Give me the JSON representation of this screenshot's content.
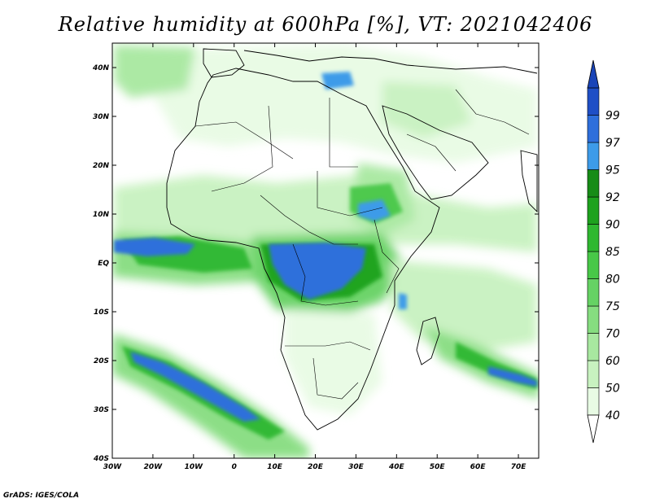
{
  "title": "Relative humidity at 600hPa [%], VT: 2021042406",
  "credit": "GrADS: IGES/COLA",
  "map": {
    "lon_range": [
      -30,
      75
    ],
    "lat_range": [
      -40,
      45
    ],
    "lon_ticks": [
      "30W",
      "20W",
      "10W",
      "0",
      "10E",
      "20E",
      "30E",
      "40E",
      "50E",
      "60E",
      "70E"
    ],
    "lat_ticks": [
      "40N",
      "30N",
      "20N",
      "10N",
      "EQ",
      "10S",
      "20S",
      "30S",
      "40S"
    ]
  },
  "colorbar": {
    "levels": [
      "40",
      "50",
      "60",
      "70",
      "75",
      "80",
      "85",
      "90",
      "92",
      "95",
      "97",
      "99"
    ],
    "colors": [
      "#e8fbe4",
      "#c8f2c0",
      "#a8e8a0",
      "#86dd80",
      "#66d264",
      "#48c848",
      "#2fb830",
      "#1ea21e",
      "#178c17",
      "#3d9be9",
      "#2e6fdb",
      "#1f4fc6"
    ],
    "under_color": "#ffffff",
    "over_color": "#1a45b8"
  }
}
